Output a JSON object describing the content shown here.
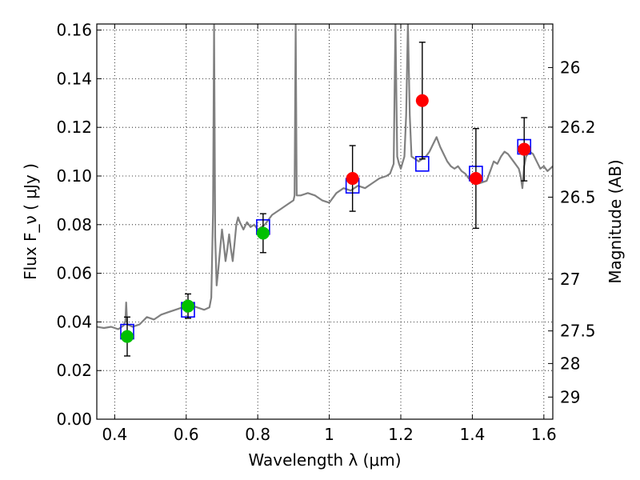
{
  "chart_data": {
    "type": "scatter",
    "title": "",
    "xlabel": "Wavelength  λ (μm)",
    "ylabel": "Flux  F_ν  ( μJy )",
    "y2label": "Magnitude (AB)",
    "xlim": [
      0.35,
      1.625
    ],
    "ylim": [
      0.0,
      0.1625
    ],
    "xticks": [
      0.4,
      0.6,
      0.8,
      1.0,
      1.2,
      1.4,
      1.6
    ],
    "xtick_labels": [
      "0.4",
      "0.6",
      "0.8",
      "1",
      "1.2",
      "1.4",
      "1.6"
    ],
    "yticks": [
      0.0,
      0.02,
      0.04,
      0.06,
      0.08,
      0.1,
      0.12,
      0.14,
      0.16
    ],
    "ytick_labels": [
      "0.00",
      "0.02",
      "0.04",
      "0.06",
      "0.08",
      "0.10",
      "0.12",
      "0.14",
      "0.16"
    ],
    "y2ticks": [
      {
        "flux": 0.1446,
        "label": "26"
      },
      {
        "flux": 0.1201,
        "label": "26.2"
      },
      {
        "flux": 0.0913,
        "label": "26.5"
      },
      {
        "flux": 0.0576,
        "label": "27"
      },
      {
        "flux": 0.0363,
        "label": "27.5"
      },
      {
        "flux": 0.0229,
        "label": "28"
      },
      {
        "flux": 0.0091,
        "label": "29"
      }
    ],
    "grid": true,
    "series": [
      {
        "kind": "line",
        "color": "#808080",
        "points": [
          [
            0.35,
            0.038
          ],
          [
            0.37,
            0.0375
          ],
          [
            0.39,
            0.038
          ],
          [
            0.41,
            0.037
          ],
          [
            0.425,
            0.0385
          ],
          [
            0.43,
            0.0405
          ],
          [
            0.432,
            0.048
          ],
          [
            0.435,
            0.039
          ],
          [
            0.45,
            0.038
          ],
          [
            0.47,
            0.039
          ],
          [
            0.49,
            0.042
          ],
          [
            0.51,
            0.041
          ],
          [
            0.53,
            0.043
          ],
          [
            0.55,
            0.044
          ],
          [
            0.57,
            0.045
          ],
          [
            0.59,
            0.046
          ],
          [
            0.61,
            0.047
          ],
          [
            0.63,
            0.046
          ],
          [
            0.65,
            0.045
          ],
          [
            0.665,
            0.046
          ],
          [
            0.67,
            0.05
          ],
          [
            0.675,
            0.085
          ],
          [
            0.678,
            0.162
          ],
          [
            0.681,
            0.075
          ],
          [
            0.685,
            0.055
          ],
          [
            0.69,
            0.062
          ],
          [
            0.695,
            0.07
          ],
          [
            0.7,
            0.078
          ],
          [
            0.705,
            0.072
          ],
          [
            0.71,
            0.065
          ],
          [
            0.715,
            0.07
          ],
          [
            0.72,
            0.076
          ],
          [
            0.725,
            0.07
          ],
          [
            0.73,
            0.065
          ],
          [
            0.735,
            0.072
          ],
          [
            0.74,
            0.08
          ],
          [
            0.745,
            0.083
          ],
          [
            0.75,
            0.081
          ],
          [
            0.76,
            0.078
          ],
          [
            0.77,
            0.081
          ],
          [
            0.78,
            0.079
          ],
          [
            0.79,
            0.08
          ],
          [
            0.8,
            0.078
          ],
          [
            0.81,
            0.079
          ],
          [
            0.82,
            0.08
          ],
          [
            0.83,
            0.082
          ],
          [
            0.84,
            0.084
          ],
          [
            0.86,
            0.086
          ],
          [
            0.88,
            0.088
          ],
          [
            0.9,
            0.09
          ],
          [
            0.903,
            0.092
          ],
          [
            0.906,
            0.162
          ],
          [
            0.909,
            0.092
          ],
          [
            0.92,
            0.092
          ],
          [
            0.94,
            0.093
          ],
          [
            0.96,
            0.092
          ],
          [
            0.98,
            0.09
          ],
          [
            1.0,
            0.089
          ],
          [
            1.02,
            0.093
          ],
          [
            1.04,
            0.095
          ],
          [
            1.06,
            0.094
          ],
          [
            1.08,
            0.096
          ],
          [
            1.1,
            0.095
          ],
          [
            1.12,
            0.097
          ],
          [
            1.14,
            0.099
          ],
          [
            1.16,
            0.1
          ],
          [
            1.17,
            0.101
          ],
          [
            1.18,
            0.105
          ],
          [
            1.185,
            0.163
          ],
          [
            1.19,
            0.108
          ],
          [
            1.195,
            0.105
          ],
          [
            1.2,
            0.103
          ],
          [
            1.21,
            0.108
          ],
          [
            1.215,
            0.125
          ],
          [
            1.22,
            0.163
          ],
          [
            1.225,
            0.125
          ],
          [
            1.23,
            0.108
          ],
          [
            1.24,
            0.107
          ],
          [
            1.25,
            0.106
          ],
          [
            1.26,
            0.107
          ],
          [
            1.27,
            0.108
          ],
          [
            1.28,
            0.11
          ],
          [
            1.29,
            0.113
          ],
          [
            1.3,
            0.116
          ],
          [
            1.31,
            0.112
          ],
          [
            1.32,
            0.109
          ],
          [
            1.33,
            0.106
          ],
          [
            1.34,
            0.104
          ],
          [
            1.35,
            0.103
          ],
          [
            1.36,
            0.104
          ],
          [
            1.37,
            0.102
          ],
          [
            1.38,
            0.101
          ],
          [
            1.39,
            0.099
          ],
          [
            1.4,
            0.098
          ],
          [
            1.42,
            0.097
          ],
          [
            1.44,
            0.098
          ],
          [
            1.45,
            0.102
          ],
          [
            1.46,
            0.106
          ],
          [
            1.47,
            0.105
          ],
          [
            1.48,
            0.108
          ],
          [
            1.49,
            0.11
          ],
          [
            1.5,
            0.109
          ],
          [
            1.51,
            0.107
          ],
          [
            1.52,
            0.105
          ],
          [
            1.53,
            0.103
          ],
          [
            1.535,
            0.1
          ],
          [
            1.54,
            0.095
          ],
          [
            1.545,
            0.104
          ],
          [
            1.55,
            0.108
          ],
          [
            1.56,
            0.11
          ],
          [
            1.57,
            0.109
          ],
          [
            1.58,
            0.106
          ],
          [
            1.59,
            0.103
          ],
          [
            1.6,
            0.104
          ],
          [
            1.61,
            0.102
          ],
          [
            1.625,
            0.104
          ]
        ]
      },
      {
        "kind": "markers",
        "marker": "square",
        "color": "#0000ff",
        "points": [
          [
            0.435,
            0.036
          ],
          [
            0.605,
            0.045
          ],
          [
            0.815,
            0.079
          ],
          [
            1.065,
            0.096
          ],
          [
            1.26,
            0.105
          ],
          [
            1.41,
            0.101
          ],
          [
            1.545,
            0.112
          ]
        ]
      },
      {
        "kind": "errorbar-points",
        "marker": "circle",
        "color": "#00c000",
        "points": [
          {
            "x": 0.435,
            "y": 0.034,
            "err": 0.008
          },
          {
            "x": 0.605,
            "y": 0.0465,
            "err": 0.005
          },
          {
            "x": 0.815,
            "y": 0.0765,
            "err": 0.008
          }
        ]
      },
      {
        "kind": "errorbar-points",
        "marker": "circle",
        "color": "#ff0000",
        "points": [
          {
            "x": 1.065,
            "y": 0.099,
            "err": 0.0135
          },
          {
            "x": 1.26,
            "y": 0.131,
            "err": 0.024
          },
          {
            "x": 1.41,
            "y": 0.099,
            "err": 0.0205
          },
          {
            "x": 1.545,
            "y": 0.111,
            "err": 0.013
          }
        ]
      }
    ]
  }
}
